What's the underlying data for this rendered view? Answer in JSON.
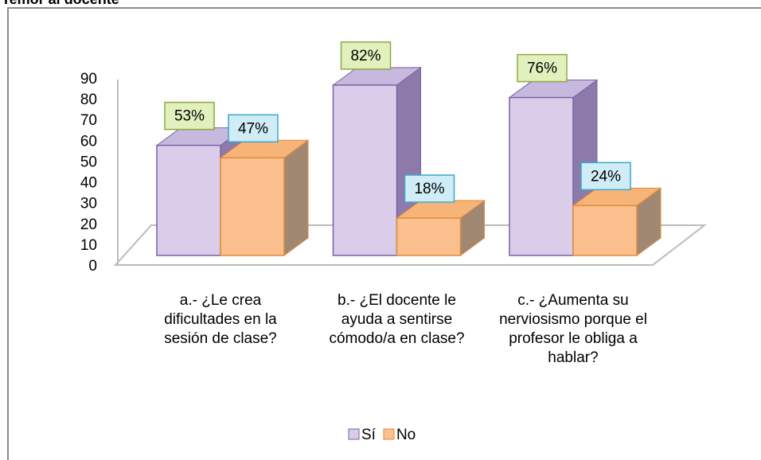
{
  "chart_data": {
    "type": "bar3d",
    "title": "Temor al docente",
    "categories": [
      "a.- ¿Le crea dificultades en la sesión de clase?",
      "b.- ¿El docente le ayuda a sentirse cómodo/a en clase?",
      "c.- ¿Aumenta su nerviosismo porque el profesor le obliga a hablar?"
    ],
    "series": [
      {
        "name": "Sí",
        "color": "#d9cdea",
        "values": [
          53,
          82,
          76
        ],
        "value_labels": [
          "53%",
          "82%",
          "76%"
        ]
      },
      {
        "name": "No",
        "color": "#fbc08e",
        "values": [
          47,
          18,
          24
        ],
        "value_labels": [
          "47%",
          "18%",
          "24%"
        ]
      }
    ],
    "ylim": [
      0,
      90
    ],
    "yticks": [
      0,
      10,
      20,
      30,
      40,
      50,
      60,
      70,
      80,
      90
    ],
    "grid": false,
    "legend": "bottom"
  }
}
